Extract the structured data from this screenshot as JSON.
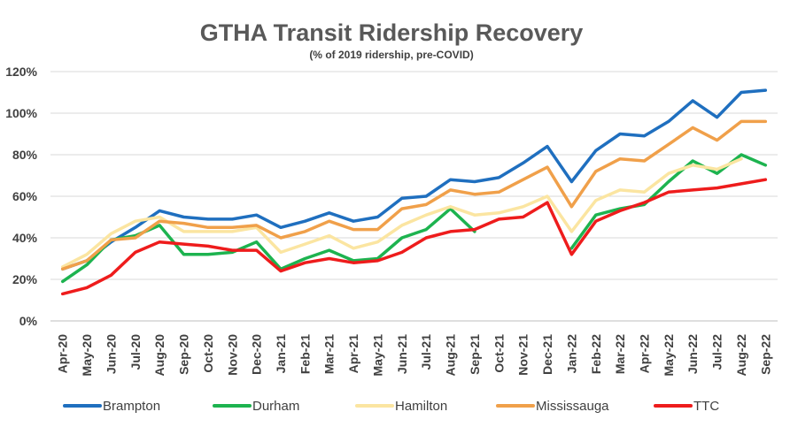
{
  "chart_data": {
    "type": "line",
    "title": "GTHA Transit Ridership Recovery",
    "subtitle": "(% of 2019 ridership, pre-COVID)",
    "xlabel": "",
    "ylabel": "",
    "ylim": [
      0,
      120
    ],
    "yticks": [
      0,
      20,
      40,
      60,
      80,
      100,
      120
    ],
    "ytick_labels": [
      "0%",
      "20%",
      "40%",
      "60%",
      "80%",
      "100%",
      "120%"
    ],
    "grid": true,
    "legend_position": "bottom",
    "categories": [
      "Apr-20",
      "May-20",
      "Jun-20",
      "Jul-20",
      "Aug-20",
      "Sep-20",
      "Oct-20",
      "Nov-20",
      "Dec-20",
      "Jan-21",
      "Feb-21",
      "Mar-21",
      "Apr-21",
      "May-21",
      "Jun-21",
      "Jul-21",
      "Aug-21",
      "Sep-21",
      "Oct-21",
      "Nov-21",
      "Dec-21",
      "Jan-22",
      "Feb-22",
      "Mar-22",
      "Apr-22",
      "May-22",
      "Jun-22",
      "Jul-22",
      "Aug-22",
      "Sep-22"
    ],
    "series": [
      {
        "name": "Brampton",
        "color": "#1f6fbf",
        "values": [
          25,
          29,
          38,
          45,
          53,
          50,
          49,
          49,
          51,
          45,
          48,
          52,
          48,
          50,
          59,
          60,
          68,
          67,
          69,
          76,
          84,
          67,
          82,
          90,
          89,
          96,
          106,
          98,
          110,
          111
        ]
      },
      {
        "name": "Durham",
        "color": "#1db34f",
        "values": [
          19,
          27,
          39,
          41,
          46,
          32,
          32,
          33,
          38,
          25,
          30,
          34,
          29,
          30,
          40,
          44,
          54,
          43,
          null,
          null,
          null,
          35,
          51,
          54,
          56,
          67,
          77,
          71,
          80,
          75
        ]
      },
      {
        "name": "Hamilton",
        "color": "#fbe5a1",
        "values": [
          26,
          32,
          42,
          48,
          50,
          43,
          43,
          43,
          45,
          33,
          37,
          41,
          35,
          38,
          46,
          51,
          55,
          51,
          52,
          55,
          60,
          43,
          58,
          63,
          62,
          71,
          75,
          73,
          78,
          null
        ]
      },
      {
        "name": "Mississauga",
        "color": "#f0a04a",
        "values": [
          25,
          29,
          39,
          40,
          48,
          47,
          45,
          45,
          46,
          40,
          43,
          48,
          44,
          44,
          54,
          56,
          63,
          61,
          62,
          68,
          74,
          55,
          72,
          78,
          77,
          85,
          93,
          87,
          96,
          96
        ]
      },
      {
        "name": "TTC",
        "color": "#ee1c1c",
        "values": [
          13,
          16,
          22,
          33,
          38,
          37,
          36,
          34,
          34,
          24,
          28,
          30,
          28,
          29,
          33,
          40,
          43,
          44,
          49,
          50,
          57,
          32,
          48,
          53,
          57,
          62,
          63,
          64,
          66,
          68
        ]
      }
    ]
  }
}
